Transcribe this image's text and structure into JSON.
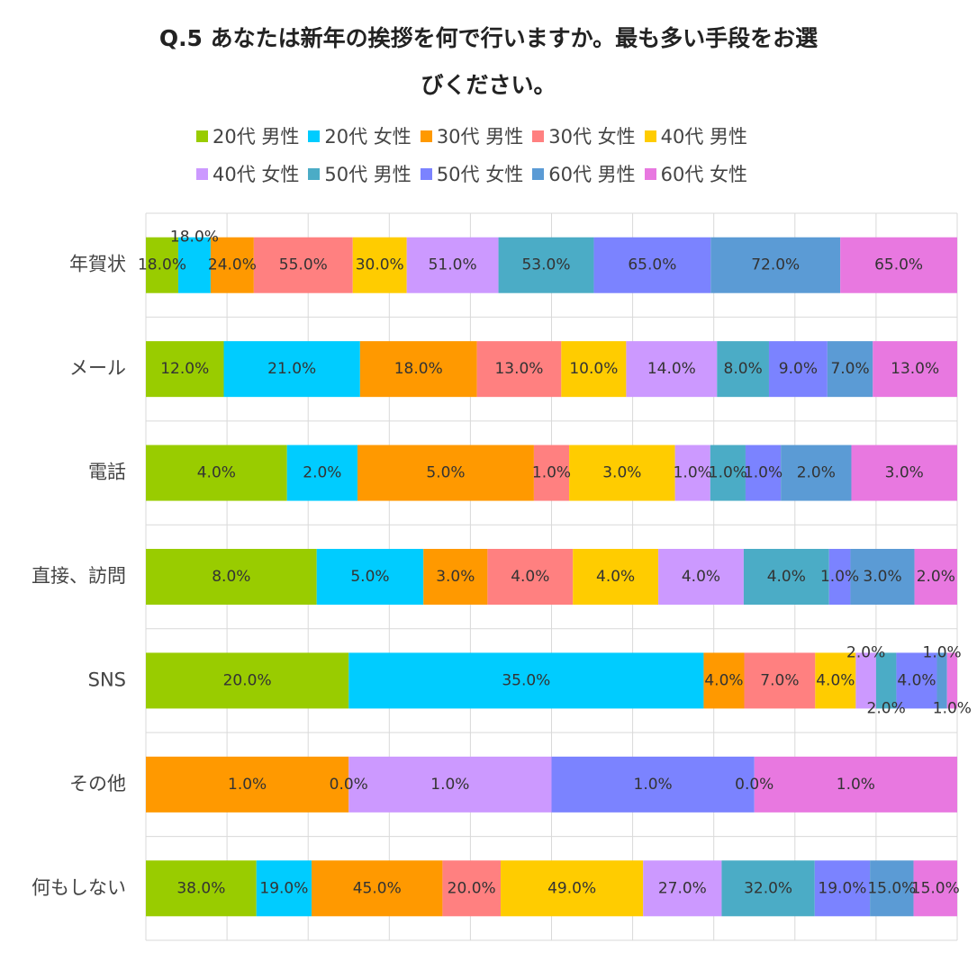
{
  "chart_data": {
    "type": "bar",
    "orientation": "horizontal",
    "stacking": "percent",
    "title_line1": "Q.5 あなたは新年の挨拶を何で行いますか。最も多い手段をお選",
    "title_line2": "びください。",
    "legend_position": "top",
    "grid": true,
    "categories": [
      "年賀状",
      "メール",
      "電話",
      "直接、訪問",
      "SNS",
      "その他",
      "何もしない"
    ],
    "series": [
      {
        "name": "20代 男性",
        "color": "#99cc00",
        "values": [
          18,
          12,
          4,
          8,
          20,
          0,
          38
        ],
        "labels": [
          "18.0%",
          "12.0%",
          "4.0%",
          "8.0%",
          "20.0%",
          "",
          "38.0%"
        ]
      },
      {
        "name": "20代 女性",
        "color": "#00ccff",
        "values": [
          18,
          21,
          2,
          5,
          35,
          0,
          19
        ],
        "labels": [
          "18.0%",
          "21.0%",
          "2.0%",
          "5.0%",
          "35.0%",
          "",
          "19.0%"
        ]
      },
      {
        "name": "30代 男性",
        "color": "#ff9900",
        "values": [
          24,
          18,
          5,
          3,
          4,
          1,
          45
        ],
        "labels": [
          "24.0%",
          "18.0%",
          "5.0%",
          "3.0%",
          "4.0%",
          "1.0%",
          "45.0%"
        ]
      },
      {
        "name": "30代 女性",
        "color": "#ff8080",
        "values": [
          55,
          13,
          1,
          4,
          7,
          0,
          20
        ],
        "labels": [
          "55.0%",
          "13.0%",
          "1.0%",
          "4.0%",
          "7.0%",
          "0.0%",
          "20.0%"
        ]
      },
      {
        "name": "40代 男性",
        "color": "#ffcc00",
        "values": [
          30,
          10,
          3,
          4,
          4,
          0,
          49
        ],
        "labels": [
          "30.0%",
          "10.0%",
          "3.0%",
          "4.0%",
          "4.0%",
          "",
          "49.0%"
        ]
      },
      {
        "name": "40代 女性",
        "color": "#cc99ff",
        "values": [
          51,
          14,
          1,
          4,
          2,
          1,
          27
        ],
        "labels": [
          "51.0%",
          "14.0%",
          "1.0%",
          "4.0%",
          "2.0%",
          "1.0%",
          "27.0%"
        ]
      },
      {
        "name": "50代 男性",
        "color": "#4bacc6",
        "values": [
          53,
          8,
          1,
          4,
          2,
          0,
          32
        ],
        "labels": [
          "53.0%",
          "8.0%",
          "1.0%",
          "4.0%",
          "2.0%",
          "",
          "32.0%"
        ]
      },
      {
        "name": "50代 女性",
        "color": "#7b83ff",
        "values": [
          65,
          9,
          1,
          1,
          4,
          1,
          19
        ],
        "labels": [
          "65.0%",
          "9.0%",
          "1.0%",
          "1.0%",
          "4.0%",
          "1.0%",
          "19.0%"
        ]
      },
      {
        "name": "60代 男性",
        "color": "#5b9bd5",
        "values": [
          72,
          7,
          2,
          3,
          1,
          0,
          15
        ],
        "labels": [
          "72.0%",
          "7.0%",
          "2.0%",
          "3.0%",
          "1.0%",
          "0.0%",
          "15.0%"
        ]
      },
      {
        "name": "60代 女性",
        "color": "#e878e0",
        "values": [
          65,
          13,
          3,
          2,
          1,
          1,
          15
        ],
        "labels": [
          "65.0%",
          "13.0%",
          "3.0%",
          "2.0%",
          "1.0%",
          "1.0%",
          "15.0%"
        ]
      }
    ]
  }
}
